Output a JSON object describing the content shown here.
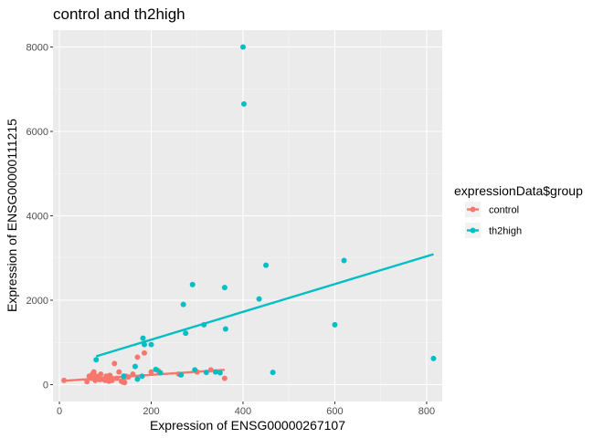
{
  "chart_data": {
    "type": "scatter",
    "title": "control and th2high",
    "xlabel": "Expression of ENSG00000267107",
    "ylabel": "Expression of ENSG00000111215",
    "xlim": [
      -14,
      834
    ],
    "ylim": [
      -400,
      8400
    ],
    "x_ticks": [
      0,
      200,
      400,
      600,
      800
    ],
    "y_ticks": [
      0,
      2000,
      4000,
      6000,
      8000
    ],
    "grid": true,
    "legend_title": "expressionData$group",
    "legend_position": "right",
    "series": [
      {
        "name": "control",
        "color": "#F8766D",
        "points": [
          [
            10,
            100
          ],
          [
            60,
            70
          ],
          [
            65,
            200
          ],
          [
            70,
            150
          ],
          [
            72,
            250
          ],
          [
            75,
            300
          ],
          [
            78,
            100
          ],
          [
            80,
            200
          ],
          [
            85,
            180
          ],
          [
            88,
            120
          ],
          [
            90,
            250
          ],
          [
            95,
            130
          ],
          [
            100,
            100
          ],
          [
            102,
            200
          ],
          [
            105,
            150
          ],
          [
            108,
            80
          ],
          [
            110,
            220
          ],
          [
            112,
            170
          ],
          [
            115,
            100
          ],
          [
            120,
            500
          ],
          [
            125,
            150
          ],
          [
            130,
            300
          ],
          [
            135,
            80
          ],
          [
            138,
            60
          ],
          [
            140,
            120
          ],
          [
            142,
            50
          ],
          [
            145,
            200
          ],
          [
            150,
            180
          ],
          [
            160,
            250
          ],
          [
            170,
            650
          ],
          [
            185,
            750
          ],
          [
            200,
            300
          ],
          [
            215,
            330
          ],
          [
            260,
            250
          ],
          [
            300,
            300
          ],
          [
            330,
            350
          ],
          [
            360,
            150
          ]
        ],
        "trend": [
          [
            10,
            90
          ],
          [
            360,
            350
          ]
        ]
      },
      {
        "name": "th2high",
        "color": "#00BFC4",
        "points": [
          [
            80,
            590
          ],
          [
            140,
            200
          ],
          [
            165,
            430
          ],
          [
            170,
            130
          ],
          [
            180,
            200
          ],
          [
            182,
            1100
          ],
          [
            185,
            950
          ],
          [
            200,
            950
          ],
          [
            210,
            360
          ],
          [
            220,
            280
          ],
          [
            265,
            230
          ],
          [
            270,
            1900
          ],
          [
            275,
            1220
          ],
          [
            290,
            2370
          ],
          [
            295,
            350
          ],
          [
            315,
            1420
          ],
          [
            320,
            290
          ],
          [
            340,
            300
          ],
          [
            350,
            280
          ],
          [
            360,
            2300
          ],
          [
            362,
            1320
          ],
          [
            400,
            8000
          ],
          [
            402,
            6650
          ],
          [
            435,
            2030
          ],
          [
            450,
            2830
          ],
          [
            465,
            290
          ],
          [
            600,
            1420
          ],
          [
            620,
            2940
          ],
          [
            815,
            620
          ]
        ],
        "trend": [
          [
            80,
            670
          ],
          [
            815,
            3090
          ]
        ]
      }
    ]
  }
}
